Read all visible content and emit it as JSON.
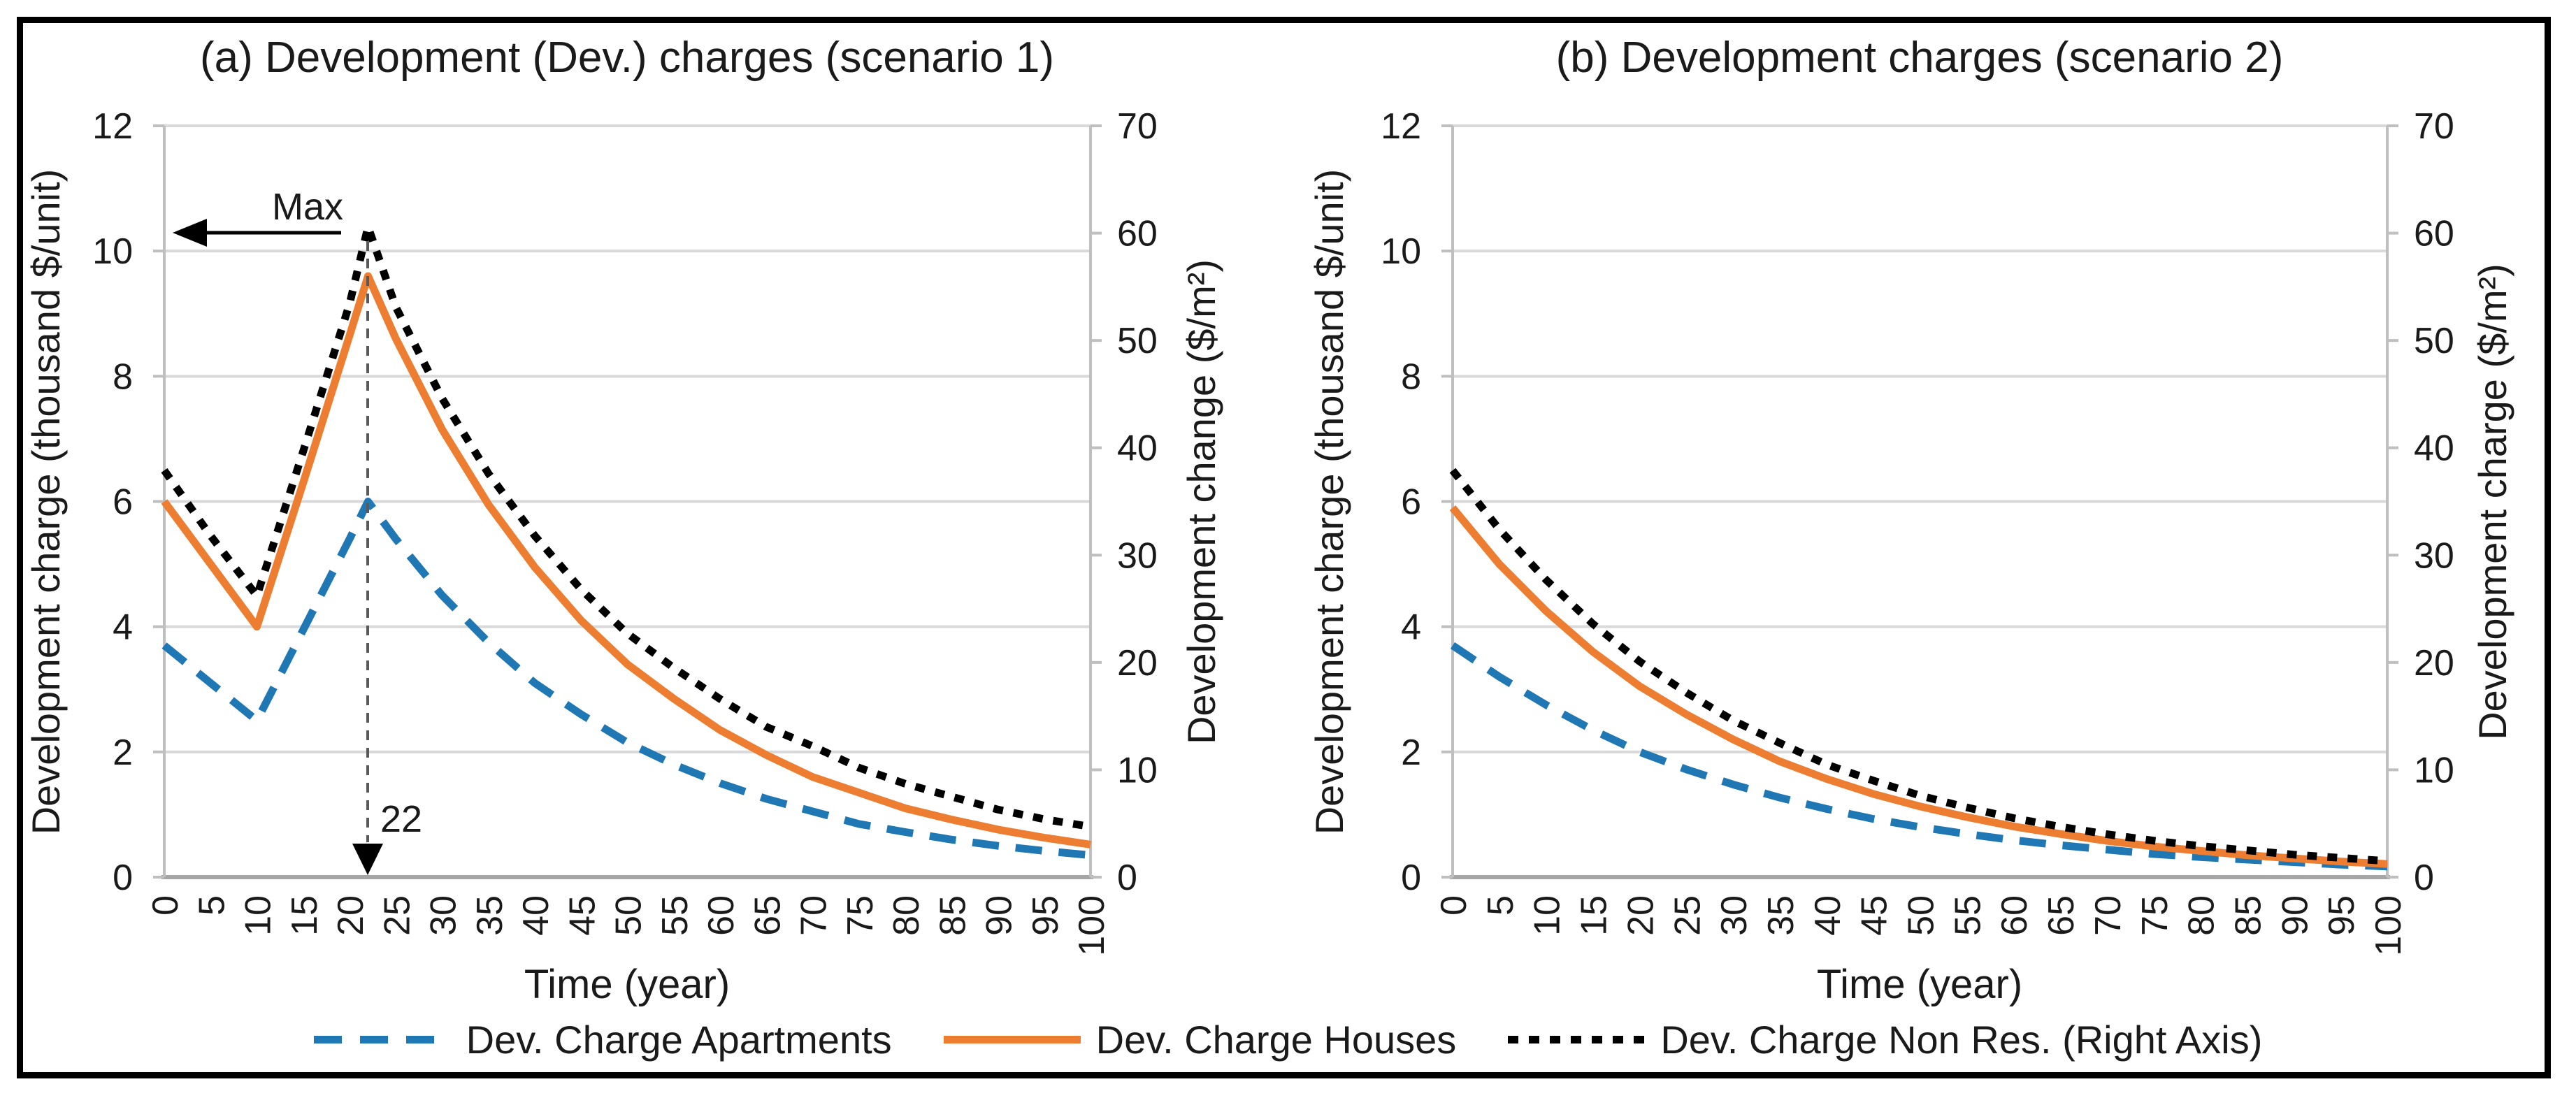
{
  "figure": {
    "background": "#ffffff",
    "border_color": "#000000",
    "text_color": "#1a1a1a",
    "gridline_color": "#d9d9d9",
    "axisline_color": "#a6a6a6",
    "edge_color": "#bfbfbf"
  },
  "legend": {
    "items": [
      {
        "label": "Dev. Charge Apartments",
        "color": "#1F77B4",
        "style": "dashed"
      },
      {
        "label": "Dev. Charge Houses",
        "color": "#ED7D31",
        "style": "solid"
      },
      {
        "label": "Dev. Charge Non Res. (Right Axis)",
        "color": "#000000",
        "style": "dotted"
      }
    ]
  },
  "chart_data": [
    {
      "type": "line",
      "panel": "a",
      "title": "(a) Development (Dev.) charges (scenario 1)",
      "xlabel": "Time (year)",
      "ylabel_left": "Development charge (thousand $/unit)",
      "ylabel_right": "Development change ($/m²)",
      "xlim": [
        0,
        100
      ],
      "xtick_step": 5,
      "ylim_left": [
        0,
        12
      ],
      "ytick_step_left": 2,
      "ylim_right": [
        0,
        70
      ],
      "ytick_step_right": 10,
      "grid": true,
      "series": [
        {
          "name": "Dev. Charge Apartments",
          "axis": "left",
          "color": "#1F77B4",
          "style": "dashed",
          "points": [
            [
              0,
              3.7
            ],
            [
              5,
              3.1
            ],
            [
              10,
              2.5
            ],
            [
              15,
              3.95
            ],
            [
              20,
              5.4
            ],
            [
              22,
              6.0
            ],
            [
              25,
              5.4
            ],
            [
              30,
              4.5
            ],
            [
              35,
              3.75
            ],
            [
              40,
              3.1
            ],
            [
              45,
              2.6
            ],
            [
              50,
              2.15
            ],
            [
              55,
              1.8
            ],
            [
              60,
              1.5
            ],
            [
              65,
              1.25
            ],
            [
              70,
              1.05
            ],
            [
              75,
              0.85
            ],
            [
              80,
              0.72
            ],
            [
              85,
              0.6
            ],
            [
              90,
              0.5
            ],
            [
              95,
              0.42
            ],
            [
              100,
              0.35
            ]
          ]
        },
        {
          "name": "Dev. Charge Houses",
          "axis": "left",
          "color": "#ED7D31",
          "style": "solid",
          "points": [
            [
              0,
              6.0
            ],
            [
              5,
              5.0
            ],
            [
              10,
              4.0
            ],
            [
              15,
              6.3
            ],
            [
              20,
              8.65
            ],
            [
              22,
              9.6
            ],
            [
              25,
              8.6
            ],
            [
              30,
              7.15
            ],
            [
              35,
              5.95
            ],
            [
              40,
              4.95
            ],
            [
              45,
              4.1
            ],
            [
              50,
              3.4
            ],
            [
              55,
              2.85
            ],
            [
              60,
              2.35
            ],
            [
              65,
              1.95
            ],
            [
              70,
              1.6
            ],
            [
              75,
              1.35
            ],
            [
              80,
              1.1
            ],
            [
              85,
              0.92
            ],
            [
              90,
              0.76
            ],
            [
              95,
              0.63
            ],
            [
              100,
              0.52
            ]
          ]
        },
        {
          "name": "Dev. Charge Non Res. (Right Axis)",
          "axis": "right",
          "color": "#000000",
          "style": "dotted",
          "points": [
            [
              0,
              37.9
            ],
            [
              5,
              31.8
            ],
            [
              10,
              26.2
            ],
            [
              15,
              39.7
            ],
            [
              20,
              53.4
            ],
            [
              22,
              60.6
            ],
            [
              25,
              53.1
            ],
            [
              30,
              44.6
            ],
            [
              35,
              37.6
            ],
            [
              40,
              31.8
            ],
            [
              45,
              26.8
            ],
            [
              50,
              22.7
            ],
            [
              55,
              19.5
            ],
            [
              60,
              16.6
            ],
            [
              65,
              14.0
            ],
            [
              70,
              12.2
            ],
            [
              75,
              10.2
            ],
            [
              80,
              8.7
            ],
            [
              85,
              7.5
            ],
            [
              90,
              6.3
            ],
            [
              95,
              5.4
            ],
            [
              100,
              4.7
            ]
          ]
        }
      ],
      "annotations": {
        "max_label": "Max",
        "peak_year_label": "22",
        "peak_year": 22
      }
    },
    {
      "type": "line",
      "panel": "b",
      "title": "(b) Development charges (scenario 2)",
      "xlabel": "Time (year)",
      "ylabel_left": "Development charge (thousand $/unit)",
      "ylabel_right": "Development charge ($/m²)",
      "xlim": [
        0,
        100
      ],
      "xtick_step": 5,
      "ylim_left": [
        0,
        12
      ],
      "ytick_step_left": 2,
      "ylim_right": [
        0,
        70
      ],
      "ytick_step_right": 10,
      "grid": true,
      "series": [
        {
          "name": "Dev. Charge Apartments",
          "axis": "left",
          "color": "#1F77B4",
          "style": "dashed",
          "points": [
            [
              0,
              3.7
            ],
            [
              5,
              3.2
            ],
            [
              10,
              2.75
            ],
            [
              15,
              2.35
            ],
            [
              20,
              2.0
            ],
            [
              25,
              1.72
            ],
            [
              30,
              1.48
            ],
            [
              35,
              1.27
            ],
            [
              40,
              1.09
            ],
            [
              45,
              0.93
            ],
            [
              50,
              0.8
            ],
            [
              55,
              0.69
            ],
            [
              60,
              0.59
            ],
            [
              65,
              0.51
            ],
            [
              70,
              0.44
            ],
            [
              75,
              0.37
            ],
            [
              80,
              0.32
            ],
            [
              85,
              0.28
            ],
            [
              90,
              0.24
            ],
            [
              95,
              0.2
            ],
            [
              100,
              0.17
            ]
          ]
        },
        {
          "name": "Dev. Charge Houses",
          "axis": "left",
          "color": "#ED7D31",
          "style": "solid",
          "points": [
            [
              0,
              5.9
            ],
            [
              5,
              5.0
            ],
            [
              10,
              4.25
            ],
            [
              15,
              3.6
            ],
            [
              20,
              3.05
            ],
            [
              25,
              2.6
            ],
            [
              30,
              2.2
            ],
            [
              35,
              1.85
            ],
            [
              40,
              1.57
            ],
            [
              45,
              1.33
            ],
            [
              50,
              1.13
            ],
            [
              55,
              0.96
            ],
            [
              60,
              0.81
            ],
            [
              65,
              0.69
            ],
            [
              70,
              0.58
            ],
            [
              75,
              0.49
            ],
            [
              80,
              0.42
            ],
            [
              85,
              0.35
            ],
            [
              90,
              0.3
            ],
            [
              95,
              0.25
            ],
            [
              100,
              0.21
            ]
          ]
        },
        {
          "name": "Dev. Charge Non Res. (Right Axis)",
          "axis": "right",
          "color": "#000000",
          "style": "dotted",
          "points": [
            [
              0,
              37.9
            ],
            [
              5,
              32.4
            ],
            [
              10,
              27.7
            ],
            [
              15,
              23.6
            ],
            [
              20,
              20.1
            ],
            [
              25,
              17.2
            ],
            [
              30,
              14.6
            ],
            [
              35,
              12.5
            ],
            [
              40,
              10.5
            ],
            [
              45,
              9.0
            ],
            [
              50,
              7.6
            ],
            [
              55,
              6.5
            ],
            [
              60,
              5.5
            ],
            [
              65,
              4.7
            ],
            [
              70,
              4.0
            ],
            [
              75,
              3.4
            ],
            [
              80,
              2.9
            ],
            [
              85,
              2.5
            ],
            [
              90,
              2.1
            ],
            [
              95,
              1.8
            ],
            [
              100,
              1.5
            ]
          ]
        }
      ],
      "annotations": {}
    }
  ]
}
